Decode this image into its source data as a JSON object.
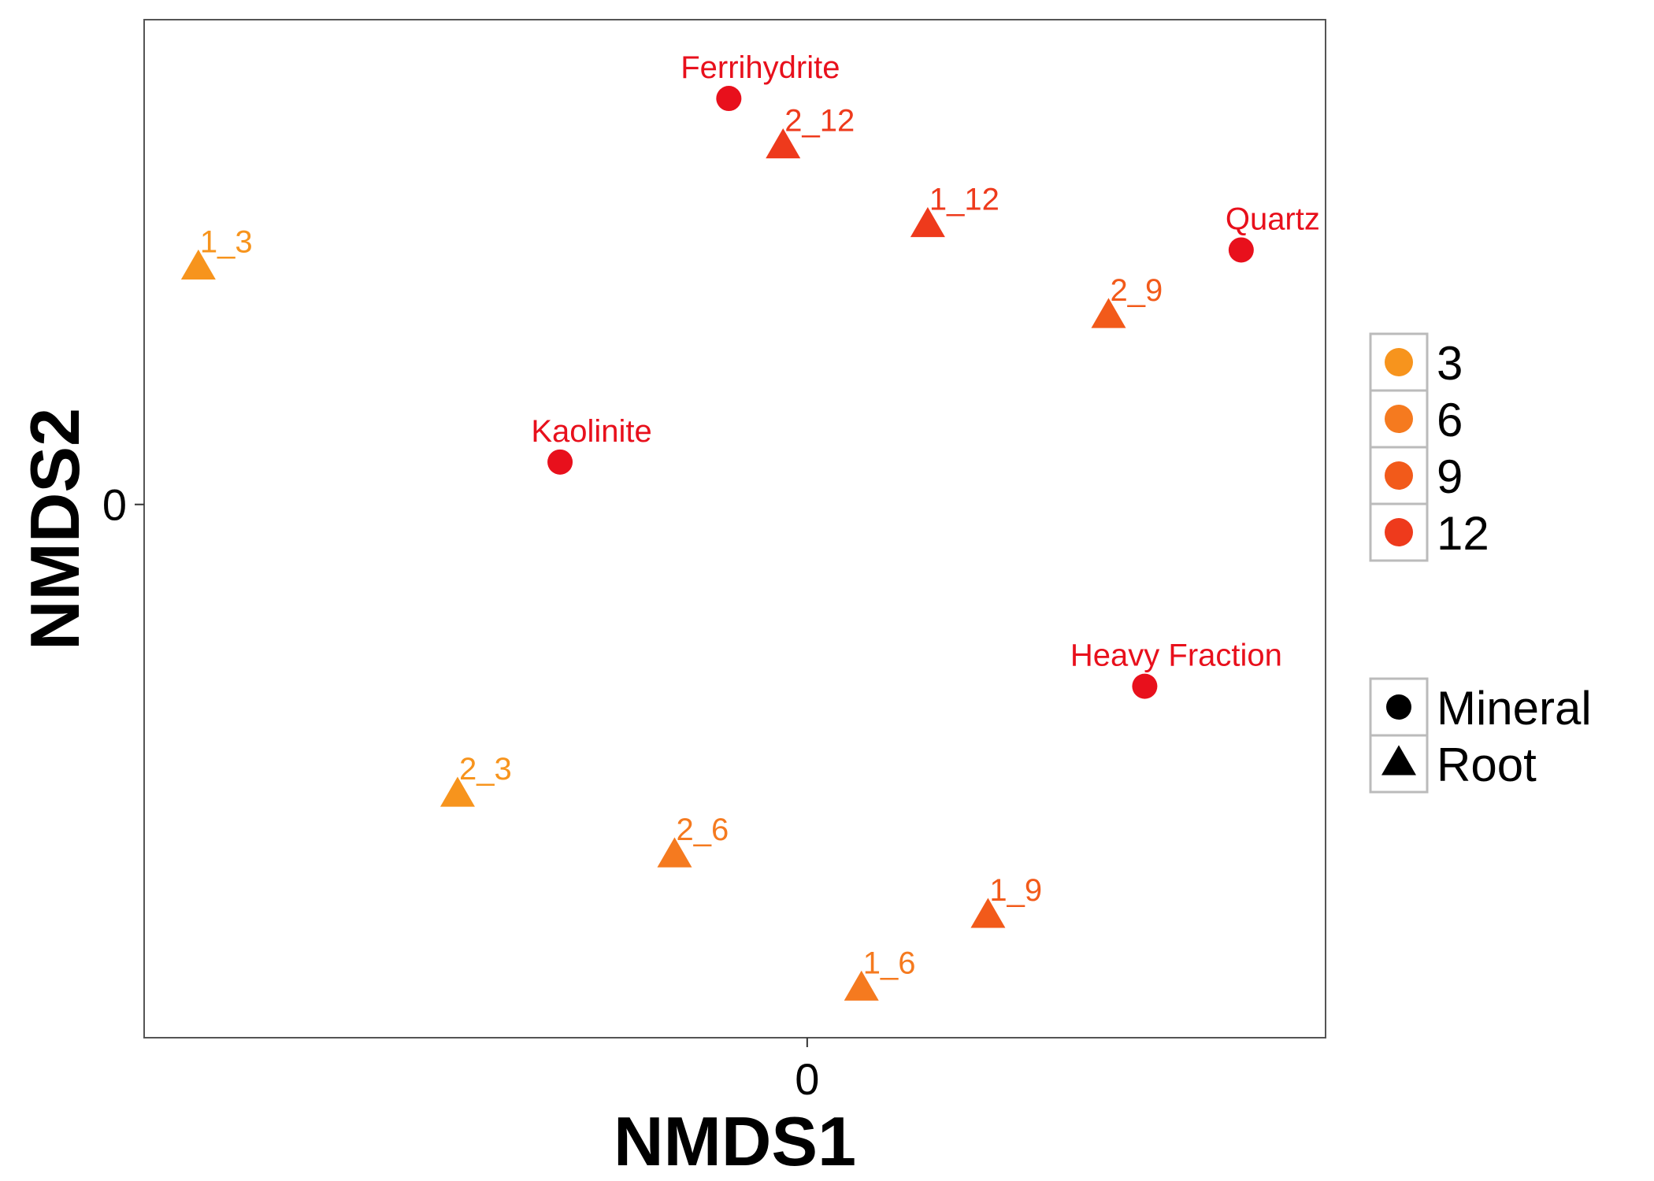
{
  "chart_data": {
    "type": "scatter",
    "title": "",
    "xlabel": "NMDS1",
    "ylabel": "NMDS2",
    "xlim": [
      -1.1,
      0.86
    ],
    "ylim": [
      -0.88,
      0.8
    ],
    "xticks": [
      {
        "value": 0,
        "label": "0"
      }
    ],
    "yticks": [
      {
        "value": 0,
        "label": "0"
      }
    ],
    "grid": false,
    "legend_position": "right",
    "color_legend": [
      {
        "label": "3",
        "color": "#F7941D"
      },
      {
        "label": "6",
        "color": "#F57A1F"
      },
      {
        "label": "9",
        "color": "#F25A1A"
      },
      {
        "label": "12",
        "color": "#EE3A1C"
      }
    ],
    "shape_legend": [
      {
        "label": "Mineral",
        "shape": "circle"
      },
      {
        "label": "Root",
        "shape": "triangle"
      }
    ],
    "points": [
      {
        "label": "Ferrihydrite",
        "x": -0.13,
        "y": 0.67,
        "shape": "circle",
        "color": "#E8101C"
      },
      {
        "label": "Quartz",
        "x": 0.72,
        "y": 0.42,
        "shape": "circle",
        "color": "#E8101C"
      },
      {
        "label": "Kaolinite",
        "x": -0.41,
        "y": 0.07,
        "shape": "circle",
        "color": "#E8101C"
      },
      {
        "label": "Heavy Fraction",
        "x": 0.56,
        "y": -0.3,
        "shape": "circle",
        "color": "#E8101C"
      },
      {
        "label": "2_12",
        "x": -0.04,
        "y": 0.59,
        "shape": "triangle",
        "color": "#EE3A1C"
      },
      {
        "label": "1_12",
        "x": 0.2,
        "y": 0.46,
        "shape": "triangle",
        "color": "#EE3A1C"
      },
      {
        "label": "1_3",
        "x": -1.01,
        "y": 0.39,
        "shape": "triangle",
        "color": "#F7941D"
      },
      {
        "label": "2_9",
        "x": 0.5,
        "y": 0.31,
        "shape": "triangle",
        "color": "#F25A1A"
      },
      {
        "label": "2_3",
        "x": -0.58,
        "y": -0.48,
        "shape": "triangle",
        "color": "#F7941D"
      },
      {
        "label": "2_6",
        "x": -0.22,
        "y": -0.58,
        "shape": "triangle",
        "color": "#F57A1F"
      },
      {
        "label": "1_9",
        "x": 0.3,
        "y": -0.68,
        "shape": "triangle",
        "color": "#F25A1A"
      },
      {
        "label": "1_6",
        "x": 0.09,
        "y": -0.8,
        "shape": "triangle",
        "color": "#F57A1F"
      }
    ]
  }
}
